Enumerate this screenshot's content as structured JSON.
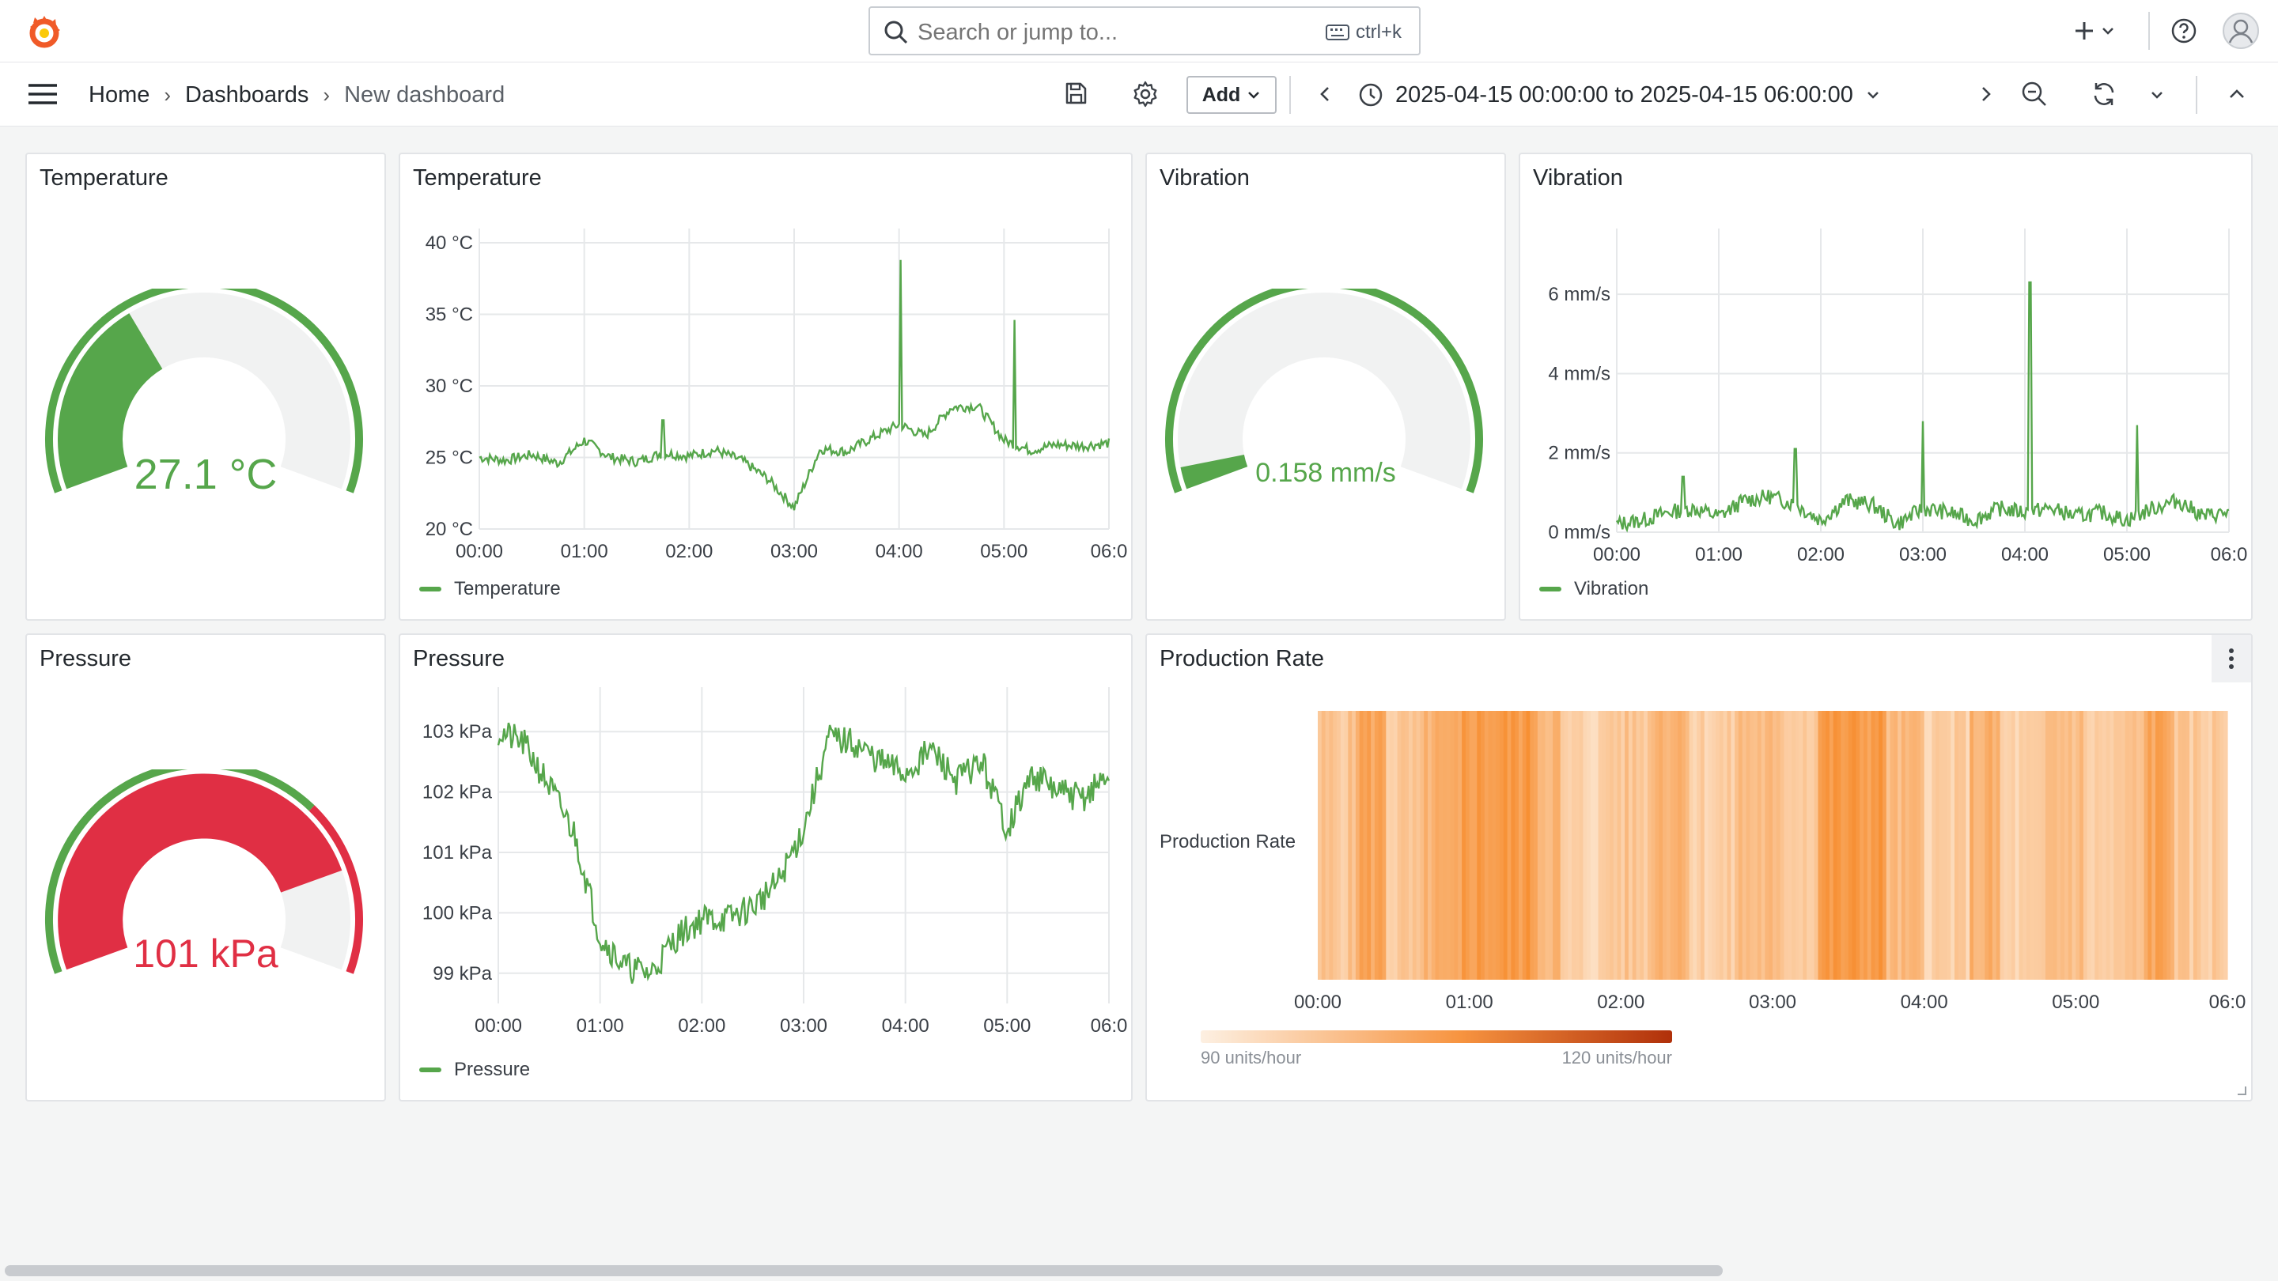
{
  "app": {
    "logo_icon": "grafana-logo-icon"
  },
  "search": {
    "placeholder": "Search or jump to...",
    "shortcut": "ctrl+k"
  },
  "breadcrumb": {
    "items": [
      "Home",
      "Dashboards",
      "New dashboard"
    ]
  },
  "toolbar": {
    "add_label": "Add",
    "time_range": "2025-04-15 00:00:00 to 2025-04-15 06:00:00"
  },
  "colors": {
    "green": "#56a64b",
    "red": "#e02f44",
    "orange": "#ff780a"
  },
  "panels": {
    "temp_gauge": {
      "title": "Temperature",
      "value": "27.1 °C",
      "fraction": 0.36
    },
    "temp_ts": {
      "title": "Temperature",
      "legend": "Temperature"
    },
    "vib_gauge": {
      "title": "Vibration",
      "value": "0.158 mm/s",
      "fraction": 0.04
    },
    "vib_ts": {
      "title": "Vibration",
      "legend": "Vibration"
    },
    "pres_gauge": {
      "title": "Pressure",
      "value": "101 kPa",
      "fraction": 0.82
    },
    "pres_ts": {
      "title": "Pressure",
      "legend": "Pressure"
    },
    "prod": {
      "title": "Production Rate",
      "row_label": "Production Rate",
      "scale_min": "90 units/hour",
      "scale_max": "120 units/hour"
    }
  },
  "chart_data": [
    {
      "type": "line",
      "title": "Temperature",
      "x_ticks": [
        "00:00",
        "01:00",
        "02:00",
        "03:00",
        "04:00",
        "05:00",
        "06:0"
      ],
      "y_ticks": [
        "20 °C",
        "25 °C",
        "30 °C",
        "35 °C",
        "40 °C"
      ],
      "ylim": [
        20,
        40
      ],
      "series": [
        {
          "name": "Temperature",
          "x": [
            0,
            0.25,
            0.5,
            0.75,
            1,
            1.25,
            1.5,
            1.75,
            2,
            2.25,
            2.5,
            2.75,
            3,
            3.25,
            3.5,
            3.75,
            4,
            4.25,
            4.5,
            4.75,
            5,
            5.25,
            5.5,
            5.75,
            6
          ],
          "y": [
            25,
            24.8,
            25.2,
            24.6,
            26.2,
            25,
            24.7,
            25.3,
            25.1,
            25.5,
            24.8,
            23.5,
            21.5,
            25.6,
            25.4,
            26.4,
            27.3,
            26.5,
            28.5,
            28.6,
            26.2,
            25.5,
            25.9,
            25.8,
            26
          ]
        }
      ],
      "spikes": [
        {
          "x": 1.75,
          "y": 27.6
        },
        {
          "x": 4.02,
          "y": 38.8
        },
        {
          "x": 5.1,
          "y": 34.6
        }
      ]
    },
    {
      "type": "line",
      "title": "Vibration",
      "x_ticks": [
        "00:00",
        "01:00",
        "02:00",
        "03:00",
        "04:00",
        "05:00",
        "06:0"
      ],
      "y_ticks": [
        "0 mm/s",
        "2 mm/s",
        "4 mm/s",
        "6 mm/s"
      ],
      "ylim": [
        0,
        7.3
      ],
      "series": [
        {
          "name": "Vibration",
          "x": [
            0,
            0.25,
            0.5,
            0.75,
            1,
            1.25,
            1.5,
            1.75,
            2,
            2.25,
            2.5,
            2.75,
            3,
            3.25,
            3.5,
            3.75,
            4,
            4.25,
            4.5,
            4.75,
            5,
            5.25,
            5.5,
            5.75,
            6
          ],
          "y": [
            0.2,
            0.3,
            0.5,
            0.6,
            0.4,
            0.8,
            0.9,
            0.7,
            0.3,
            0.8,
            0.7,
            0.2,
            0.6,
            0.5,
            0.3,
            0.6,
            0.5,
            0.6,
            0.4,
            0.5,
            0.3,
            0.6,
            0.8,
            0.4,
            0.5
          ]
        }
      ],
      "spikes": [
        {
          "x": 0.65,
          "y": 1.4
        },
        {
          "x": 1.75,
          "y": 2.1
        },
        {
          "x": 3.0,
          "y": 2.8
        },
        {
          "x": 4.05,
          "y": 6.3
        },
        {
          "x": 5.1,
          "y": 2.7
        }
      ]
    },
    {
      "type": "line",
      "title": "Pressure",
      "x_ticks": [
        "00:00",
        "01:00",
        "02:00",
        "03:00",
        "04:00",
        "05:00",
        "06:0"
      ],
      "y_ticks": [
        "99 kPa",
        "100 kPa",
        "101 kPa",
        "102 kPa",
        "103 kPa"
      ],
      "ylim": [
        98.5,
        103.5
      ],
      "series": [
        {
          "name": "Pressure",
          "x": [
            0,
            0.25,
            0.5,
            0.75,
            1,
            1.25,
            1.5,
            1.75,
            2,
            2.25,
            2.5,
            2.75,
            3,
            3.25,
            3.5,
            3.75,
            4,
            4.25,
            4.5,
            4.75,
            5,
            5.25,
            5.5,
            5.75,
            6
          ],
          "y": [
            103,
            102.8,
            102.1,
            101.3,
            99.6,
            99.1,
            99,
            99.6,
            99.9,
            99.9,
            100.1,
            100.5,
            101.4,
            102.9,
            102.8,
            102.5,
            102.3,
            102.7,
            102.2,
            102.5,
            101.4,
            102.3,
            102,
            101.9,
            102.3
          ]
        }
      ]
    },
    {
      "type": "heatmap",
      "title": "Production Rate",
      "x_ticks": [
        "00:00",
        "01:00",
        "02:00",
        "03:00",
        "04:00",
        "05:00",
        "06:0"
      ],
      "row": "Production Rate",
      "value_range": [
        90,
        120
      ],
      "segments": [
        {
          "start": 0,
          "end": 0.25,
          "v": 99
        },
        {
          "start": 0.25,
          "end": 0.45,
          "v": 106
        },
        {
          "start": 0.45,
          "end": 0.7,
          "v": 98
        },
        {
          "start": 0.7,
          "end": 0.95,
          "v": 103
        },
        {
          "start": 0.95,
          "end": 1.45,
          "v": 108
        },
        {
          "start": 1.45,
          "end": 1.6,
          "v": 103
        },
        {
          "start": 1.6,
          "end": 1.9,
          "v": 96
        },
        {
          "start": 1.9,
          "end": 2.2,
          "v": 99
        },
        {
          "start": 2.2,
          "end": 2.45,
          "v": 104
        },
        {
          "start": 2.45,
          "end": 2.75,
          "v": 97
        },
        {
          "start": 2.75,
          "end": 3.0,
          "v": 101
        },
        {
          "start": 3.0,
          "end": 3.3,
          "v": 99
        },
        {
          "start": 3.3,
          "end": 3.75,
          "v": 108
        },
        {
          "start": 3.75,
          "end": 4.0,
          "v": 101
        },
        {
          "start": 4.0,
          "end": 4.3,
          "v": 97
        },
        {
          "start": 4.3,
          "end": 4.5,
          "v": 103
        },
        {
          "start": 4.5,
          "end": 4.8,
          "v": 96
        },
        {
          "start": 4.8,
          "end": 5.05,
          "v": 101
        },
        {
          "start": 5.05,
          "end": 5.3,
          "v": 97
        },
        {
          "start": 5.3,
          "end": 5.45,
          "v": 99
        },
        {
          "start": 5.45,
          "end": 5.65,
          "v": 106
        },
        {
          "start": 5.65,
          "end": 6.0,
          "v": 98
        }
      ]
    }
  ]
}
